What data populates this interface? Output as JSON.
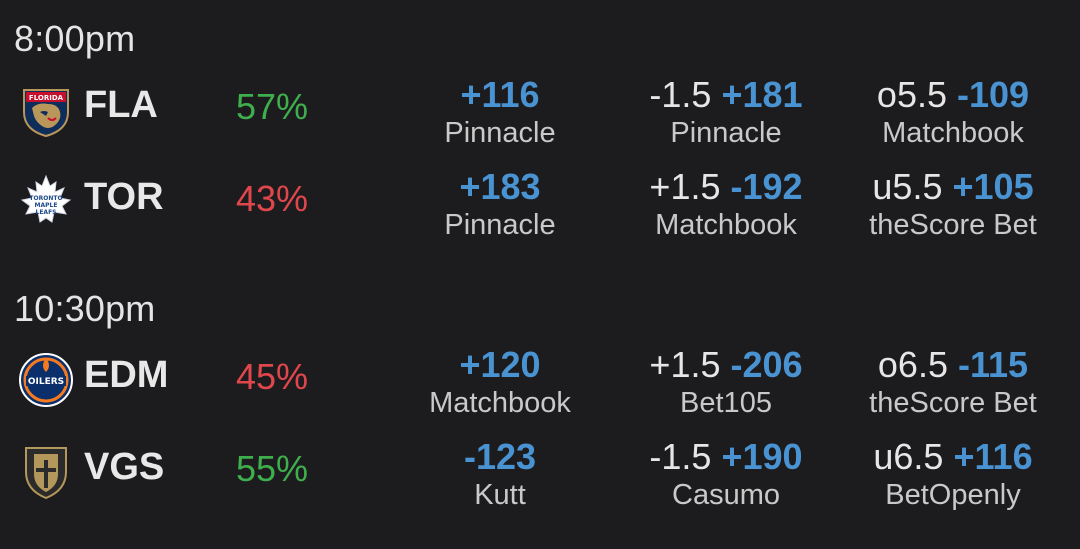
{
  "games": [
    {
      "time": "8:00pm",
      "teams": [
        {
          "abbr": "FLA",
          "logo": "panthers-logo",
          "prob": "57%",
          "prob_color": "#3fae4d",
          "moneyline": {
            "price": "+116",
            "book": "Pinnacle"
          },
          "spread": {
            "line": "-1.5",
            "price": "+181",
            "book": "Pinnacle"
          },
          "total": {
            "line": "o5.5",
            "price": "-109",
            "book": "Matchbook"
          }
        },
        {
          "abbr": "TOR",
          "logo": "maple-leafs-logo",
          "prob": "43%",
          "prob_color": "#e0474c",
          "moneyline": {
            "price": "+183",
            "book": "Pinnacle"
          },
          "spread": {
            "line": "+1.5",
            "price": "-192",
            "book": "Matchbook"
          },
          "total": {
            "line": "u5.5",
            "price": "+105",
            "book": "theScore Bet"
          }
        }
      ]
    },
    {
      "time": "10:30pm",
      "teams": [
        {
          "abbr": "EDM",
          "logo": "oilers-logo",
          "prob": "45%",
          "prob_color": "#e0474c",
          "moneyline": {
            "price": "+120",
            "book": "Matchbook"
          },
          "spread": {
            "line": "+1.5",
            "price": "-206",
            "book": "Bet105"
          },
          "total": {
            "line": "o6.5",
            "price": "-115",
            "book": "theScore Bet"
          }
        },
        {
          "abbr": "VGS",
          "logo": "golden-knights-logo",
          "prob": "55%",
          "prob_color": "#3fae4d",
          "moneyline": {
            "price": "-123",
            "book": "Kutt"
          },
          "spread": {
            "line": "-1.5",
            "price": "+190",
            "book": "Casumo"
          },
          "total": {
            "line": "u6.5",
            "price": "+116",
            "book": "BetOpenly"
          }
        }
      ]
    }
  ]
}
